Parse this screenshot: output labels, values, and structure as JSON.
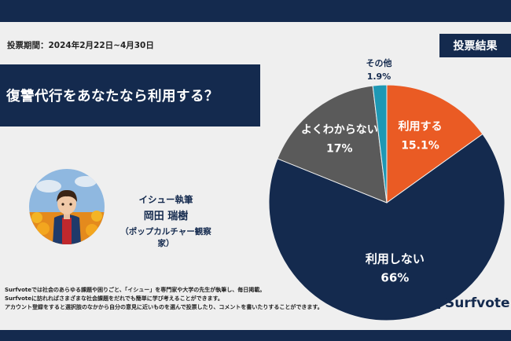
{
  "period_label": "投票期間：2024年2月22日~4月30日",
  "result_badge": "投票結果",
  "question": "復讐代行をあなたなら利用する？",
  "author": {
    "role": "イシュー執筆",
    "name": "岡田 瑞樹",
    "title": "（ポップカルチャー観察家）"
  },
  "footer_lines": [
    "Surfvoteでは社会のあらゆる課題や困りごと、「イシュー」を専門家や大学の先生が執筆し、毎日掲載。",
    "Surfvoteに訪れればさまざまな社会課題をだれでも簡単に学び考えることができます。",
    "アカウント登録をすると選択肢のなかから自分の意見に近いものを選んで投票したり、コメントを書いたりすることができます。"
  ],
  "logo_text": "Surfvote",
  "colors": {
    "navy": "#142a4e",
    "orange": "#ea5b24",
    "gray": "#5a5a5a",
    "teal": "#1e98b4"
  },
  "chart_data": {
    "type": "pie",
    "slices": [
      {
        "label": "利用する",
        "value": 15.1,
        "display": "15.1%",
        "color": "#ea5b24"
      },
      {
        "label": "利用しない",
        "value": 66,
        "display": "66%",
        "color": "#142a4e"
      },
      {
        "label": "よくわからない",
        "value": 17,
        "display": "17%",
        "color": "#5a5a5a"
      },
      {
        "label": "その他",
        "value": 1.9,
        "display": "1.9%",
        "color": "#1e98b4"
      }
    ]
  }
}
